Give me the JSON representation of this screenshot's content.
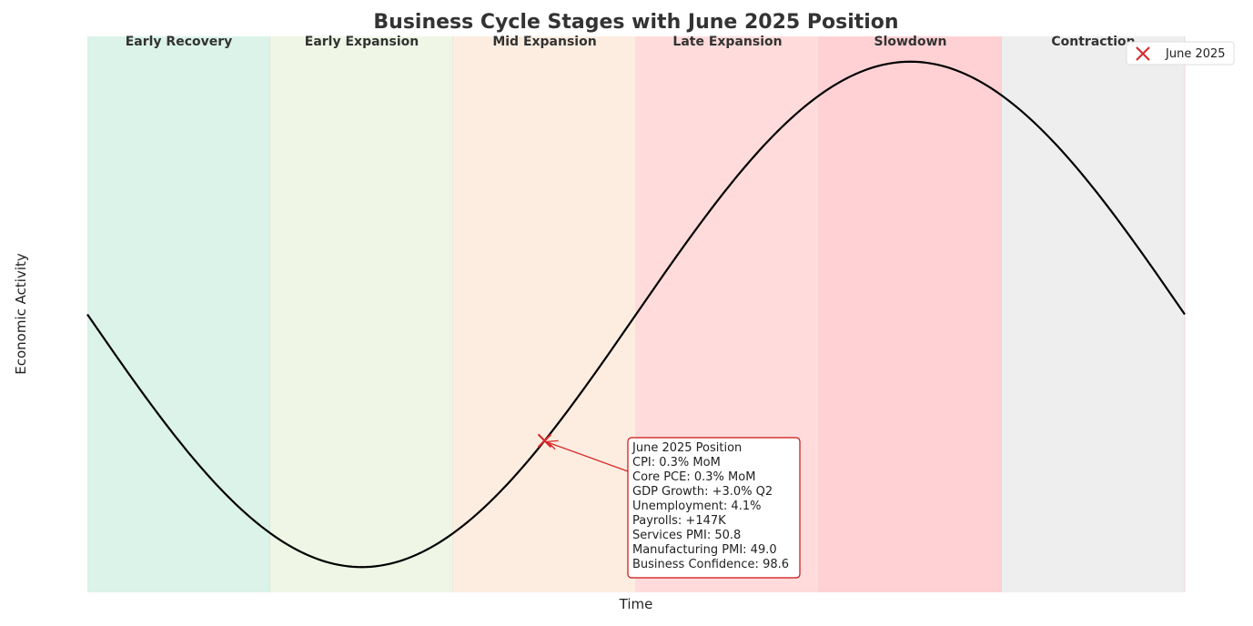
{
  "chart_data": {
    "type": "line",
    "title": "Business Cycle Stages with June 2025 Position",
    "xlabel": "Time",
    "ylabel": "Economic Activity",
    "xlim": [
      0,
      6
    ],
    "ylim": [
      -1.1,
      1.1
    ],
    "grid": false,
    "legend_position": "top-right",
    "stages": [
      {
        "name": "Early Recovery",
        "start": 0,
        "end": 1,
        "color": "#dbf3e9"
      },
      {
        "name": "Early Expansion",
        "start": 1,
        "end": 2,
        "color": "#eff6e6"
      },
      {
        "name": "Mid Expansion",
        "start": 2,
        "end": 3,
        "color": "#fdede1"
      },
      {
        "name": "Late Expansion",
        "start": 3,
        "end": 4,
        "color": "#ffdbdb"
      },
      {
        "name": "Slowdown",
        "start": 4,
        "end": 5,
        "color": "#ffd1d4"
      },
      {
        "name": "Contraction",
        "start": 5,
        "end": 6,
        "color": "#eeeeee"
      }
    ],
    "series": [
      {
        "function": "-sin(pi*x/3)",
        "color": "#000000"
      }
    ],
    "marker": {
      "label": "June 2025",
      "x": 2.5,
      "y": -0.5,
      "color": "#d62728"
    },
    "annotation": {
      "lines": [
        "June 2025 Position",
        "CPI: 0.3% MoM",
        "Core PCE: 0.3% MoM",
        "GDP Growth: +3.0% Q2",
        "Unemployment: 4.1%",
        "Payrolls: +147K",
        "Services PMI: 50.8",
        "Manufacturing PMI: 49.0",
        "Business Confidence: 98.6"
      ]
    }
  }
}
